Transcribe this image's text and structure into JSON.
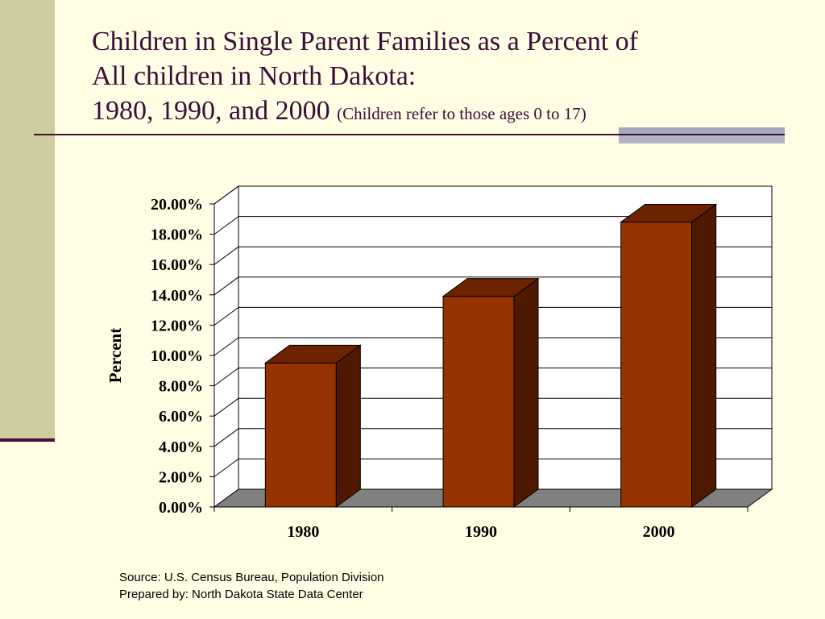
{
  "slide": {
    "title_line1": "Children in Single Parent Families as a Percent of",
    "title_line2": "All children in North Dakota:",
    "title_line3": "1980, 1990, and 2000",
    "subtitle": "(Children refer to those ages 0 to 17)",
    "source_line1": "Source: U.S. Census Bureau, Population Division",
    "source_line2": "Prepared by: North Dakota State Data Center"
  },
  "colors": {
    "background": "#FFFDE3",
    "sidebar": "#CFCC9E",
    "accent": "#4B0E3A",
    "bar_front": "#963300",
    "bar_top": "#6E2300",
    "bar_side": "#4E1900",
    "floor": "#808080"
  },
  "chart_data": {
    "type": "bar",
    "style": "3d",
    "categories": [
      "1980",
      "1990",
      "2000"
    ],
    "values": [
      9.5,
      13.9,
      18.8
    ],
    "ylabel": "Percent",
    "xlabel": "",
    "ylim": [
      0,
      20
    ],
    "yticks": [
      "0.00%",
      "2.00%",
      "4.00%",
      "6.00%",
      "8.00%",
      "10.00%",
      "12.00%",
      "14.00%",
      "16.00%",
      "18.00%",
      "20.00%"
    ],
    "grid": true,
    "legend": "none"
  }
}
